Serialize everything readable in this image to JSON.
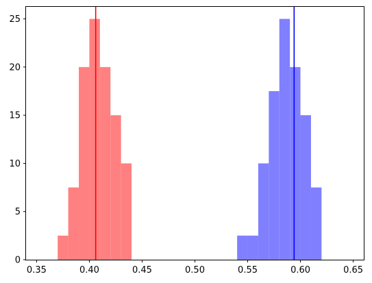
{
  "chart_data": {
    "type": "histogram",
    "title": "",
    "xlabel": "",
    "ylabel": "",
    "xlim": [
      0.34,
      0.66
    ],
    "ylim": [
      0,
      26.25
    ],
    "x_ticks": [
      "0.35",
      "0.40",
      "0.45",
      "0.50",
      "0.55",
      "0.60",
      "0.65"
    ],
    "y_ticks": [
      "0",
      "5",
      "10",
      "15",
      "20",
      "25"
    ],
    "series": [
      {
        "color": "#ff8080",
        "bin_edges": [
          0.37,
          0.38,
          0.39,
          0.4,
          0.41,
          0.42,
          0.43,
          0.44
        ],
        "counts": [
          2.5,
          7.5,
          20,
          25,
          20,
          15,
          10
        ],
        "vline": {
          "x": 0.406,
          "color": "#ff0000"
        }
      },
      {
        "color": "#8080ff",
        "bin_edges": [
          0.54,
          0.55,
          0.56,
          0.57,
          0.58,
          0.59,
          0.6,
          0.61,
          0.62
        ],
        "counts": [
          2.5,
          2.5,
          10,
          17.5,
          25,
          20,
          15,
          7.5
        ],
        "vline": {
          "x": 0.594,
          "color": "#0000ff"
        }
      }
    ]
  }
}
